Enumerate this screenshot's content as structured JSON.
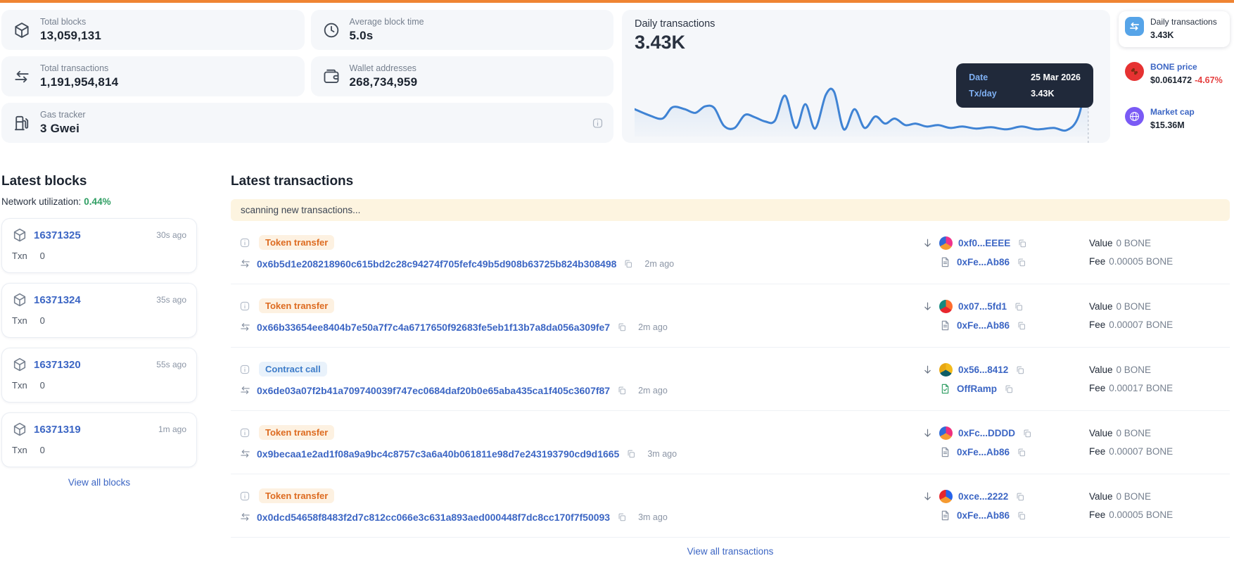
{
  "theme": {
    "accent_bar": "#ef8432",
    "link_blue": "#3c66c4",
    "green": "#2f9e63",
    "red": "#e53e3e",
    "chart_line": "#3f83d4",
    "card_bg": "#f5f7fa"
  },
  "stats": {
    "cards": [
      {
        "id": "total-blocks",
        "icon": "cube-icon",
        "label": "Total blocks",
        "value": "13,059,131",
        "wide": false,
        "has_info_icon": false
      },
      {
        "id": "average-block-time",
        "icon": "clock-icon",
        "label": "Average block time",
        "value": "5.0s",
        "wide": false,
        "has_info_icon": false
      },
      {
        "id": "total-transactions",
        "icon": "transfers-icon",
        "label": "Total transactions",
        "value": "1,191,954,814",
        "wide": false,
        "has_info_icon": false
      },
      {
        "id": "wallet-addresses",
        "icon": "wallet-icon",
        "label": "Wallet addresses",
        "value": "268,734,959",
        "wide": false,
        "has_info_icon": false
      },
      {
        "id": "gas-tracker",
        "icon": "gas-pump-icon",
        "label": "Gas tracker",
        "value": "3 Gwei",
        "wide": true,
        "has_info_icon": true
      }
    ]
  },
  "chart": {
    "title": "Daily transactions",
    "current_value": "3.43K",
    "tooltip": {
      "date_label": "Date",
      "date_value": "25 Mar 2026",
      "tx_label": "Tx/day",
      "tx_value": "3.43K"
    },
    "chart_data": {
      "type": "line",
      "title": "Daily transactions",
      "xlabel": "date (series ends 25 Mar 2026)",
      "ylabel": "transactions per day",
      "axes_hidden": true,
      "legend": "none",
      "last_point": {
        "date": "25 Mar 2026",
        "tx_per_day": "3.43K"
      },
      "points_norm": [
        [
          0,
          61
        ],
        [
          3,
          70
        ],
        [
          6,
          75.5
        ],
        [
          8.2,
          58
        ],
        [
          10.8,
          61
        ],
        [
          13.1,
          66.7
        ],
        [
          15.2,
          56.7
        ],
        [
          17.2,
          59
        ],
        [
          19.3,
          86.7
        ],
        [
          21.6,
          90
        ],
        [
          23.8,
          70
        ],
        [
          25.9,
          73.3
        ],
        [
          28.2,
          80
        ],
        [
          30.3,
          78.9
        ],
        [
          32.5,
          40
        ],
        [
          34.8,
          90
        ],
        [
          36.9,
          53.3
        ],
        [
          39,
          91
        ],
        [
          41.3,
          38.9
        ],
        [
          43.1,
          34.4
        ],
        [
          45.2,
          92.2
        ],
        [
          47.5,
          61
        ],
        [
          49.7,
          90
        ],
        [
          52,
          72.2
        ],
        [
          54.1,
          83.3
        ],
        [
          56.2,
          75.5
        ],
        [
          58.5,
          85.6
        ],
        [
          60.7,
          83.3
        ],
        [
          63.1,
          87.8
        ],
        [
          65.6,
          85.6
        ],
        [
          68.2,
          90
        ],
        [
          70.8,
          87.8
        ],
        [
          73.8,
          91
        ],
        [
          77,
          88.9
        ],
        [
          80.3,
          92.2
        ],
        [
          83.6,
          87.8
        ],
        [
          86.9,
          92.2
        ],
        [
          90.5,
          90
        ],
        [
          93.4,
          93.3
        ],
        [
          95.9,
          72.2
        ],
        [
          98,
          5.6
        ]
      ]
    }
  },
  "token_info": {
    "items": [
      {
        "id": "daily-transactions",
        "icon": "transfers-badge-icon",
        "icon_bg": "#56a4e8",
        "icon_round": false,
        "label": "Daily transactions",
        "value": "3.43K",
        "change": "",
        "selected": true,
        "link": false
      },
      {
        "id": "bone-price",
        "icon": "bone-icon",
        "icon_bg": "#e63232",
        "icon_round": true,
        "label": "BONE price",
        "value": "$0.061472",
        "change": "-4.67%",
        "selected": false,
        "link": true
      },
      {
        "id": "market-cap",
        "icon": "globe-icon",
        "icon_bg": "#7a5af5",
        "icon_round": true,
        "label": "Market cap",
        "value": "$15.36M",
        "change": "",
        "selected": false,
        "link": true
      }
    ]
  },
  "blocks": {
    "title": "Latest blocks",
    "utilization_label": "Network utilization:",
    "utilization_value": "0.44%",
    "txn_label": "Txn",
    "view_all": "View all blocks",
    "items": [
      {
        "number": "16371325",
        "time": "30s ago",
        "txn": "0"
      },
      {
        "number": "16371324",
        "time": "35s ago",
        "txn": "0"
      },
      {
        "number": "16371320",
        "time": "55s ago",
        "txn": "0"
      },
      {
        "number": "16371319",
        "time": "1m ago",
        "txn": "0"
      }
    ]
  },
  "transactions": {
    "title": "Latest transactions",
    "scanning_banner": "scanning new transactions...",
    "value_label": "Value",
    "fee_label": "Fee",
    "view_all": "View all transactions",
    "rows": [
      {
        "type_label": "Token transfer",
        "type_style": "orange",
        "hash": "0x6b5d1e208218960c615bd2c28c94274f705fefc49b5d908b63725b824b308498",
        "time": "2m ago",
        "from": {
          "label": "0xf0...EEEE",
          "avatar_colors": [
            "#f0328c",
            "#f59a31",
            "#3069d6"
          ]
        },
        "to": {
          "label": "0xFe...Ab86",
          "icon": "document-icon"
        },
        "value": "0 BONE",
        "fee": "0.00005 BONE"
      },
      {
        "type_label": "Token transfer",
        "type_style": "orange",
        "hash": "0x66b33654ee8404b7e50a7f7c4a6717650f92683fe5eb1f13b7a8da056a309fe7",
        "time": "2m ago",
        "from": {
          "label": "0x07...5fd1",
          "avatar_colors": [
            "#ff6d2e",
            "#e8262d",
            "#14897f"
          ]
        },
        "to": {
          "label": "0xFe...Ab86",
          "icon": "document-icon"
        },
        "value": "0 BONE",
        "fee": "0.00007 BONE"
      },
      {
        "type_label": "Contract call",
        "type_style": "blue",
        "hash": "0x6de03a07f2b41a709740039f747ec0684daf20b0e65aba435ca1f405c3607f87",
        "time": "2m ago",
        "from": {
          "label": "0x56...8412",
          "avatar_colors": [
            "#f3bb1c",
            "#0f5e66",
            "#e8a813"
          ]
        },
        "to": {
          "label": "OffRamp",
          "icon": "document-check-icon"
        },
        "value": "0 BONE",
        "fee": "0.00017 BONE"
      },
      {
        "type_label": "Token transfer",
        "type_style": "orange",
        "hash": "0x9becaa1e2ad1f08a9a9bc4c8757c3a6a40b061811e98d7e243193790cd9d1665",
        "time": "3m ago",
        "from": {
          "label": "0xFc...DDDD",
          "avatar_colors": [
            "#ef2f7e",
            "#f59a31",
            "#2f6bd8"
          ]
        },
        "to": {
          "label": "0xFe...Ab86",
          "icon": "document-icon"
        },
        "value": "0 BONE",
        "fee": "0.00007 BONE"
      },
      {
        "type_label": "Token transfer",
        "type_style": "orange",
        "hash": "0x0dcd54658f8483f2d7c812cc066e3c631a893aed000448f7dc8cc170f7f50093",
        "time": "3m ago",
        "from": {
          "label": "0xce...2222",
          "avatar_colors": [
            "#2563eb",
            "#f59a31",
            "#e8262d"
          ]
        },
        "to": {
          "label": "0xFe...Ab86",
          "icon": "document-icon"
        },
        "value": "0 BONE",
        "fee": "0.00005 BONE"
      }
    ]
  }
}
